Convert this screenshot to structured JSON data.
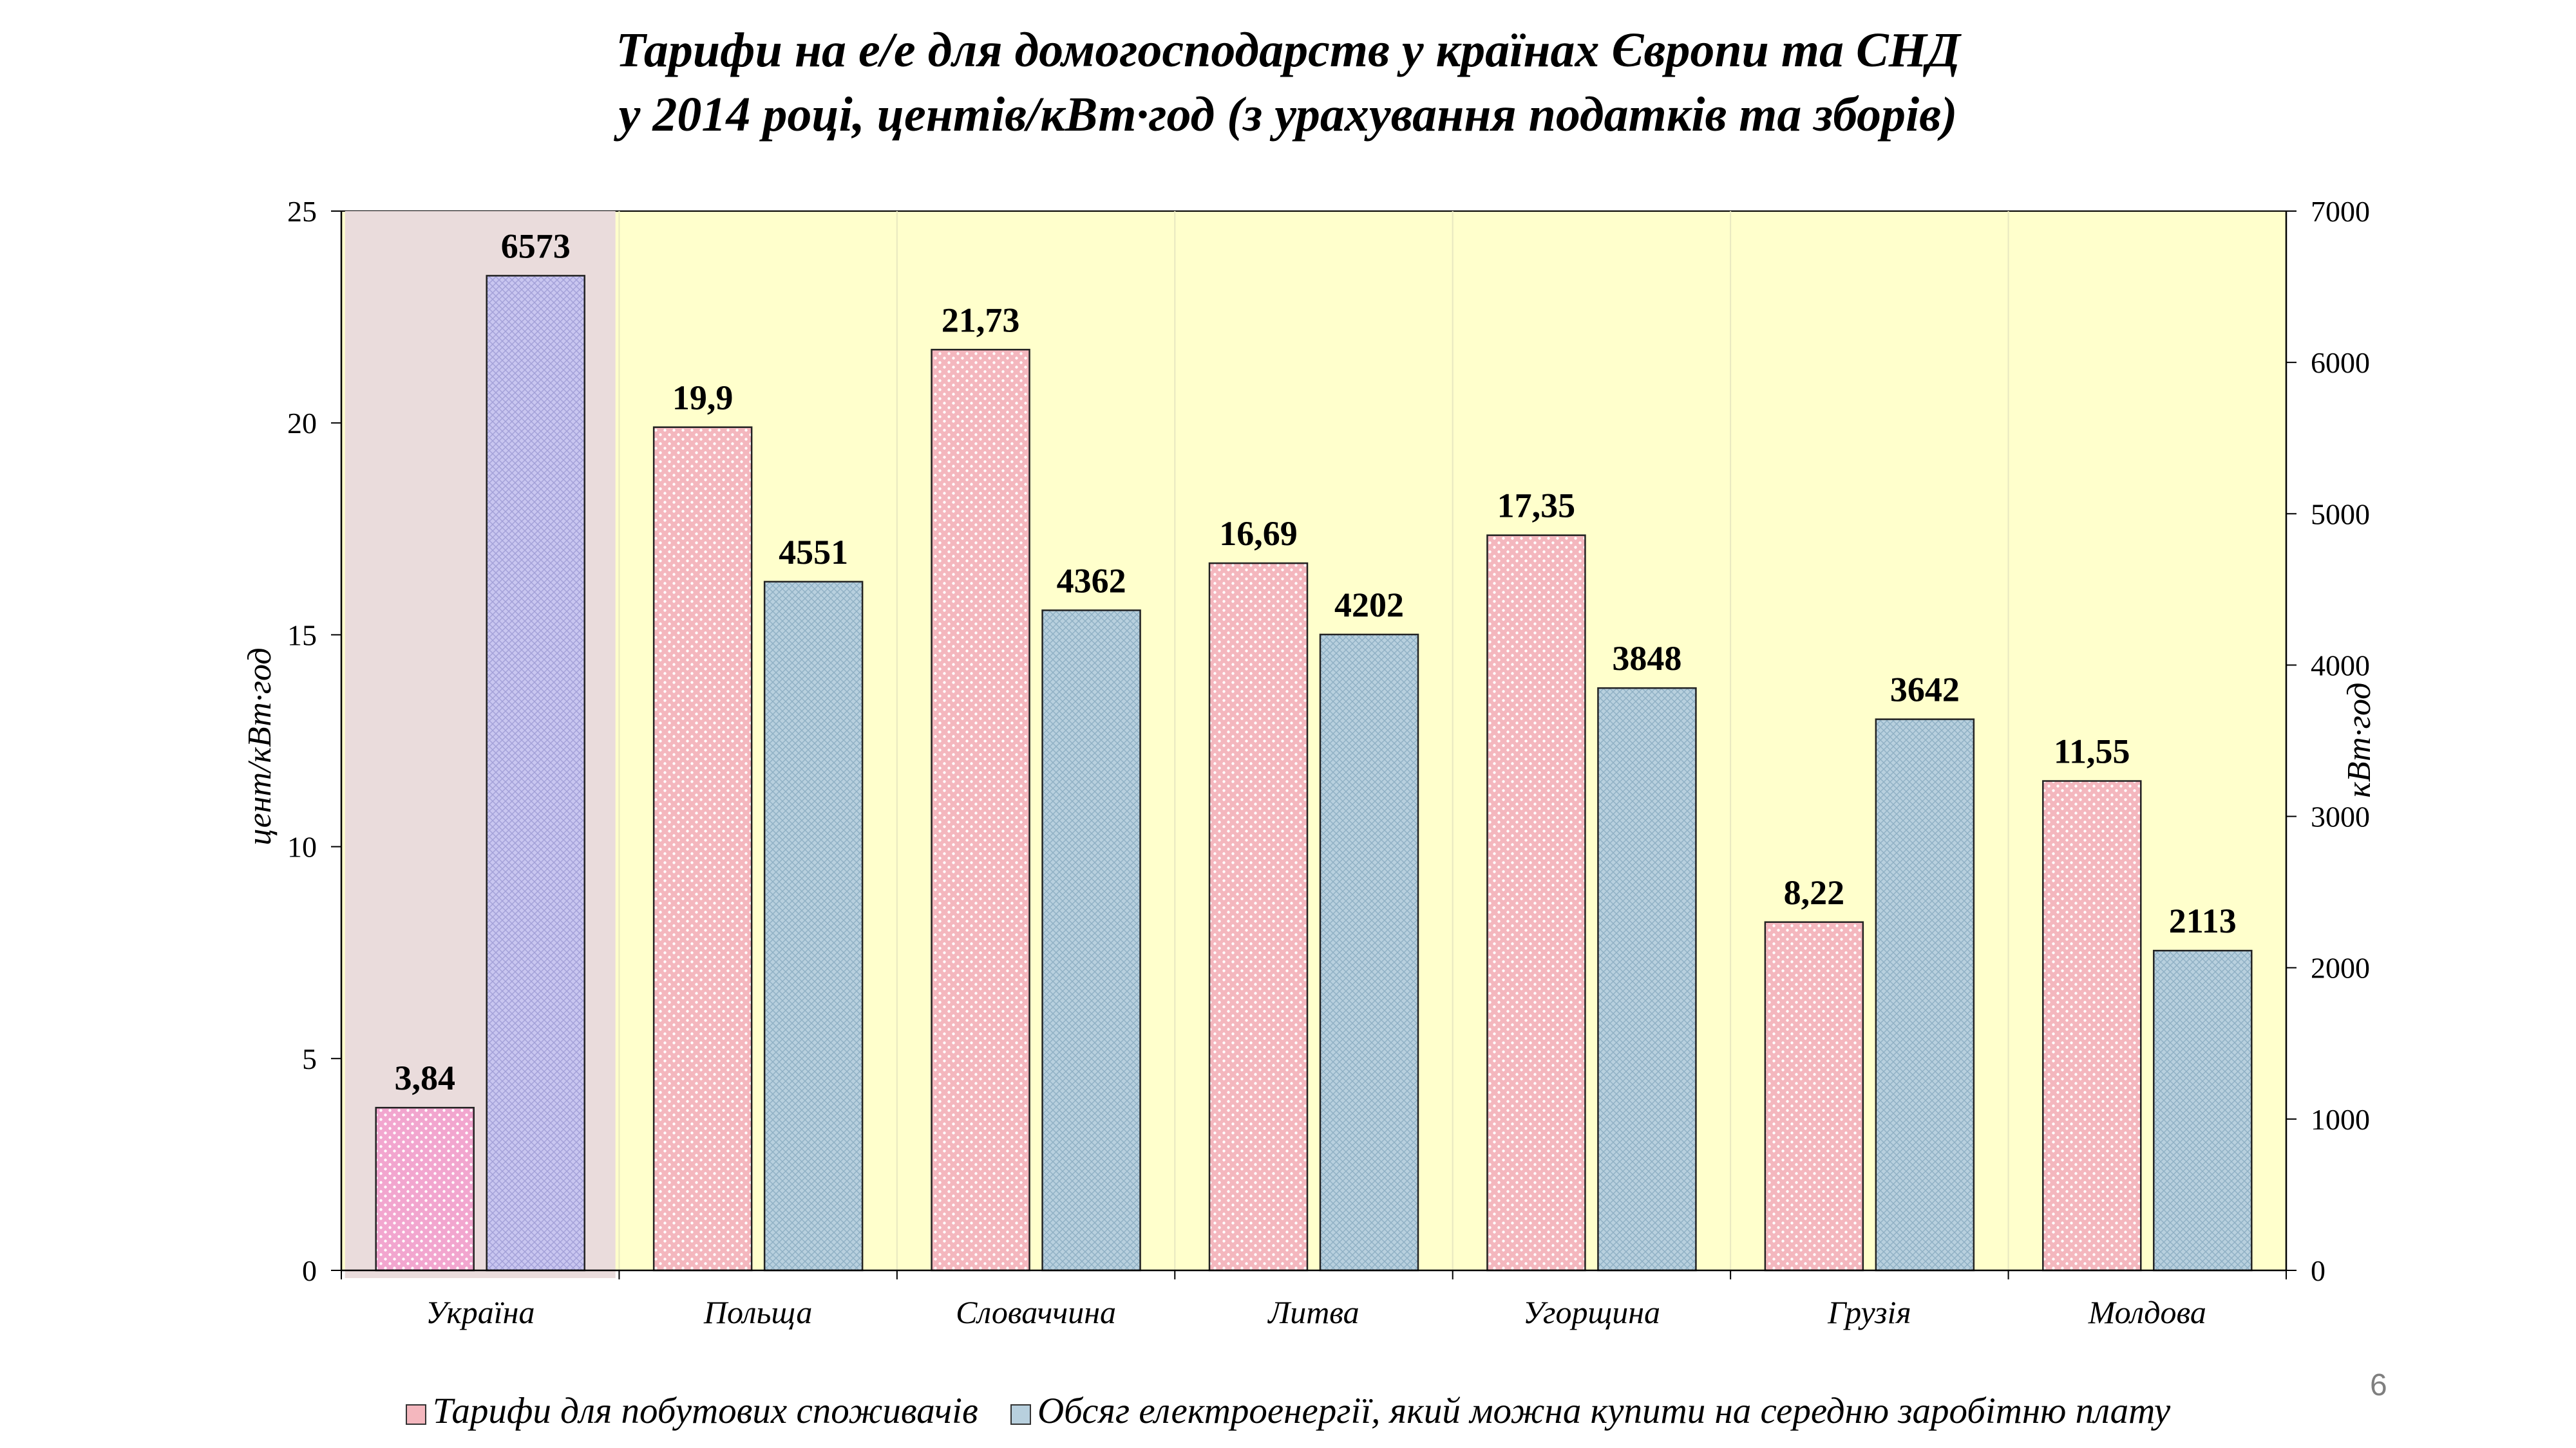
{
  "slide": {
    "title_line1": "Тарифи на е/е для домогосподарств у країнах Європи та СНД",
    "title_line2": "у 2014 році, центів/кВт·год (з урахування податків та зборів)",
    "page_number": "6"
  },
  "chart_data": {
    "type": "bar",
    "title": "Тарифи на е/е для домогосподарств у країнах Європи та СНД у 2014 році, центів/кВт·год (з урахування податків та зборів)",
    "categories": [
      "Україна",
      "Польща",
      "Словаччина",
      "Литва",
      "Угорщина",
      "Грузія",
      "Молдова"
    ],
    "series": [
      {
        "name": "Тарифи для побутових споживачів",
        "axis": "left",
        "values": [
          3.84,
          19.9,
          21.73,
          16.69,
          17.35,
          8.22,
          11.55
        ],
        "labels": [
          "3,84",
          "19,9",
          "21,73",
          "16,69",
          "17,35",
          "8,22",
          "11,55"
        ],
        "color": "#f4b7be",
        "highlight_color": "#f2a6cf"
      },
      {
        "name": "Обсяг електроенергії, який можна купити на середню заробітню плату",
        "axis": "right",
        "values": [
          6573,
          4551,
          4362,
          4202,
          3848,
          3642,
          2113
        ],
        "labels": [
          "6573",
          "4551",
          "4362",
          "4202",
          "3848",
          "3642",
          "2113"
        ],
        "color": "#b8d0de",
        "highlight_color": "#c9c6f0"
      }
    ],
    "ylabel": "цент/кВт·год",
    "y2label": "кВт·год",
    "ylim": [
      0,
      25
    ],
    "y2lim": [
      0,
      7000
    ],
    "yticks": [
      "0",
      "5",
      "10",
      "15",
      "20",
      "25"
    ],
    "y2ticks": [
      "0",
      "1000",
      "2000",
      "3000",
      "4000",
      "5000",
      "6000",
      "7000"
    ],
    "highlighted_category": "Україна",
    "plot_background": "#ffffcc",
    "highlight_background": "#eadcdc",
    "grid": false,
    "legend_position": "bottom"
  }
}
